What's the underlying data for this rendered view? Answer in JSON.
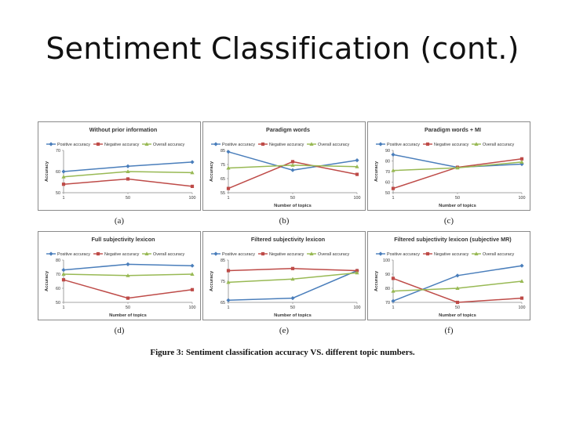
{
  "slide": {
    "title": "Sentiment Classification (cont.)"
  },
  "figure": {
    "caption": "Figure 3: Sentiment classification accuracy VS. different topic numbers."
  },
  "series_colors": {
    "positive": "#4a7ebb",
    "negative": "#be4b48",
    "overall": "#98b954"
  },
  "chart_data": [
    {
      "type": "line",
      "title": "Without prior information",
      "sublabel": "(a)",
      "xlabel": "",
      "ylabel": "Accuracy",
      "categories": [
        "1",
        "50",
        "100"
      ],
      "yticks": [
        "50",
        "60",
        "70"
      ],
      "ylim": [
        50,
        70
      ],
      "legend": [
        "Positive accuracy",
        "Negative accuracy",
        "Overall accuracy"
      ],
      "legend_placement": "top",
      "series": [
        {
          "name": "Positive accuracy",
          "values": [
            60,
            62.5,
            64.5
          ]
        },
        {
          "name": "Negative accuracy",
          "values": [
            54,
            56.5,
            53
          ]
        },
        {
          "name": "Overall accuracy",
          "values": [
            57.5,
            60,
            59.5
          ]
        }
      ]
    },
    {
      "type": "line",
      "title": "Paradigm words",
      "sublabel": "(b)",
      "xlabel": "Number of topics",
      "ylabel": "Accuracy",
      "categories": [
        "1",
        "50",
        "100"
      ],
      "yticks": [
        "55",
        "65",
        "75",
        "85"
      ],
      "ylim": [
        55,
        85
      ],
      "legend": [
        "Positive accuracy",
        "Negative accuracy",
        "Overall accuracy"
      ],
      "legend_placement": "top",
      "series": [
        {
          "name": "Positive accuracy",
          "values": [
            84,
            71,
            78
          ]
        },
        {
          "name": "Negative accuracy",
          "values": [
            58,
            77,
            68
          ]
        },
        {
          "name": "Overall accuracy",
          "values": [
            72.5,
            74.5,
            73.5
          ]
        }
      ]
    },
    {
      "type": "line",
      "title": "Paradigm words + MI",
      "sublabel": "(c)",
      "xlabel": "Number of topics",
      "ylabel": "Accuracy",
      "categories": [
        "1",
        "50",
        "100"
      ],
      "yticks": [
        "50",
        "60",
        "70",
        "80",
        "90"
      ],
      "ylim": [
        50,
        90
      ],
      "legend": [
        "Positive accuracy",
        "Negative accuracy",
        "Overall accuracy"
      ],
      "legend_placement": "top",
      "series": [
        {
          "name": "Positive accuracy",
          "values": [
            86,
            74,
            77
          ]
        },
        {
          "name": "Negative accuracy",
          "values": [
            54,
            74,
            82
          ]
        },
        {
          "name": "Overall accuracy",
          "values": [
            71,
            73.5,
            79
          ]
        }
      ]
    },
    {
      "type": "line",
      "title": "Full subjectivity lexicon",
      "sublabel": "(d)",
      "xlabel": "Number of topics",
      "ylabel": "Accuracy",
      "categories": [
        "1",
        "50",
        "100"
      ],
      "yticks": [
        "50",
        "60",
        "70",
        "80"
      ],
      "ylim": [
        50,
        80
      ],
      "legend": [
        "Positive accuracy",
        "Negative accuracy",
        "Overall accuracy"
      ],
      "legend_placement": "top",
      "series": [
        {
          "name": "Positive accuracy",
          "values": [
            73,
            77,
            76
          ]
        },
        {
          "name": "Negative accuracy",
          "values": [
            66,
            53,
            59
          ]
        },
        {
          "name": "Overall accuracy",
          "values": [
            70,
            69,
            70
          ]
        }
      ]
    },
    {
      "type": "line",
      "title": "Filtered subjectivity lexicon",
      "sublabel": "(e)",
      "xlabel": "Number of topics",
      "ylabel": "Accuracy",
      "categories": [
        "1",
        "50",
        "100"
      ],
      "yticks": [
        "65",
        "75",
        "85"
      ],
      "ylim": [
        65,
        85
      ],
      "legend": [
        "Positive accuracy",
        "Negative accuracy",
        "Overall accuracy"
      ],
      "legend_placement": "top",
      "series": [
        {
          "name": "Positive accuracy",
          "values": [
            66,
            67,
            80
          ]
        },
        {
          "name": "Negative accuracy",
          "values": [
            80,
            81,
            80
          ]
        },
        {
          "name": "Overall accuracy",
          "values": [
            74.5,
            76,
            79
          ]
        }
      ]
    },
    {
      "type": "line",
      "title": "Filtered subjectivity lexicon (subjective MR)",
      "sublabel": "(f)",
      "xlabel": "Number of topics",
      "ylabel": "Accuracy",
      "categories": [
        "1",
        "50",
        "100"
      ],
      "yticks": [
        "70",
        "80",
        "90",
        "100"
      ],
      "ylim": [
        70,
        100
      ],
      "legend": [
        "Positive accuracy",
        "Negative accuracy",
        "Overall accuracy"
      ],
      "legend_placement": "top",
      "series": [
        {
          "name": "Positive accuracy",
          "values": [
            71,
            89,
            96
          ]
        },
        {
          "name": "Negative accuracy",
          "values": [
            87,
            70,
            73
          ]
        },
        {
          "name": "Overall accuracy",
          "values": [
            78,
            80,
            85
          ]
        }
      ]
    }
  ]
}
